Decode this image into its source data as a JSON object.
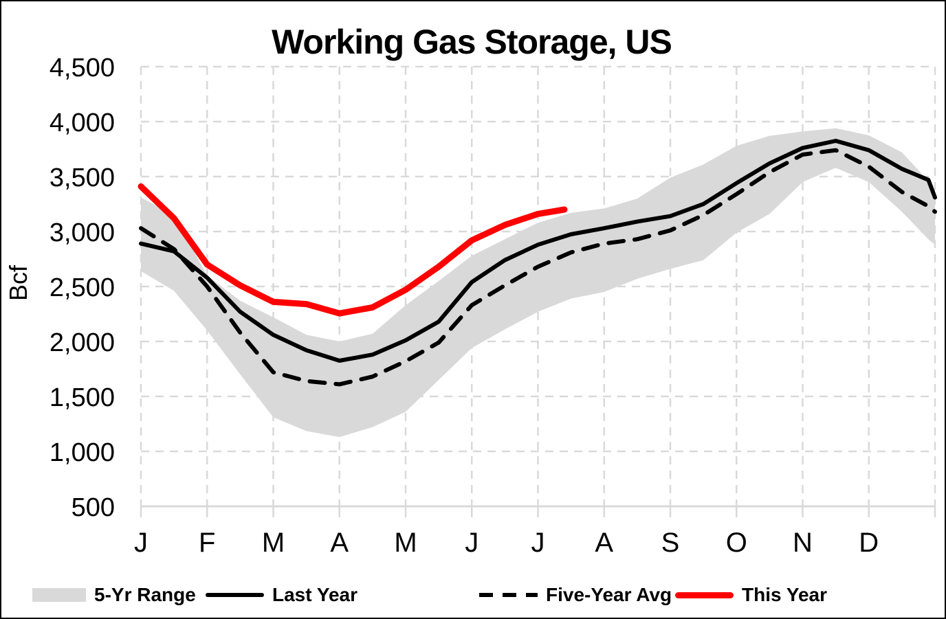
{
  "title": "Working Gas Storage, US",
  "legend": [
    {
      "label": "5-Yr Range",
      "swatch": "gray-band",
      "color": "#d9d9d9"
    },
    {
      "label": "Last Year",
      "swatch": "solid-black-line",
      "color": "#000000"
    },
    {
      "label": "Five-Year Avg",
      "swatch": "dashed-black-line",
      "color": "#000000"
    },
    {
      "label": "This Year",
      "swatch": "solid-red-line",
      "color": "#ff0000"
    }
  ],
  "chart_data": {
    "type": "line",
    "title": "Working Gas Storage, US",
    "xlabel": "",
    "ylabel": "Bcf",
    "ylim": [
      500,
      4500
    ],
    "y_tick_step": 500,
    "y_ticks": [
      500,
      1000,
      1500,
      2000,
      2500,
      3000,
      3500,
      4000,
      4500
    ],
    "x_tick_labels": [
      "J",
      "F",
      "M",
      "A",
      "M",
      "J",
      "J",
      "A",
      "S",
      "O",
      "N",
      "D"
    ],
    "x_scale_note": "x is months since Jan 1 (0 = Jan 1, 11.5 = Dec 15, 12 = year end); This Year ends ~mid-July (x = 6.4)",
    "grid": true,
    "legend_position": "bottom",
    "band": {
      "name": "5-Yr Range",
      "color": "#d9d9d9",
      "x": [
        0,
        0.5,
        1,
        1.5,
        2,
        2.5,
        3,
        3.5,
        4,
        4.5,
        5,
        5.5,
        6,
        6.5,
        7,
        7.5,
        8,
        8.5,
        9,
        9.5,
        10,
        10.5,
        11,
        11.5,
        11.9,
        12
      ],
      "upper": [
        3310,
        3150,
        2600,
        2370,
        2220,
        2060,
        2000,
        2070,
        2330,
        2550,
        2780,
        2930,
        3080,
        3170,
        3210,
        3300,
        3490,
        3610,
        3780,
        3870,
        3910,
        3940,
        3875,
        3720,
        3460,
        3340
      ],
      "lower": [
        2640,
        2460,
        2100,
        1700,
        1310,
        1185,
        1130,
        1220,
        1360,
        1650,
        1940,
        2110,
        2270,
        2390,
        2450,
        2570,
        2660,
        2740,
        2990,
        3160,
        3450,
        3580,
        3450,
        3180,
        2930,
        2880
      ]
    },
    "series": [
      {
        "name": "Last Year",
        "color": "#000000",
        "style": "solid",
        "stroke_width": 6,
        "x": [
          0,
          0.5,
          1,
          1.5,
          2,
          2.5,
          3,
          3.5,
          4,
          4.5,
          5,
          5.5,
          6,
          6.5,
          7,
          7.5,
          8,
          8.5,
          9,
          9.5,
          10,
          10.5,
          11,
          11.5,
          11.9,
          12
        ],
        "values": [
          2890,
          2820,
          2580,
          2270,
          2060,
          1920,
          1825,
          1880,
          2010,
          2180,
          2540,
          2740,
          2880,
          2975,
          3030,
          3090,
          3140,
          3250,
          3440,
          3620,
          3760,
          3825,
          3740,
          3570,
          3470,
          3310
        ]
      },
      {
        "name": "Five-Year Avg",
        "color": "#000000",
        "style": "dashed",
        "stroke_width": 6,
        "x": [
          0,
          0.5,
          1,
          1.5,
          2,
          2.5,
          3,
          3.5,
          4,
          4.5,
          5,
          5.5,
          6,
          6.5,
          7,
          7.5,
          8,
          8.5,
          9,
          9.5,
          10,
          10.5,
          11,
          11.5,
          11.9,
          12
        ],
        "values": [
          3030,
          2840,
          2500,
          2080,
          1720,
          1640,
          1610,
          1680,
          1820,
          1990,
          2330,
          2510,
          2680,
          2810,
          2890,
          2930,
          3010,
          3150,
          3340,
          3540,
          3700,
          3740,
          3590,
          3360,
          3230,
          3180
        ]
      },
      {
        "name": "This Year",
        "color": "#ff0000",
        "style": "solid",
        "stroke_width": 9,
        "x": [
          0,
          0.5,
          1,
          1.5,
          2,
          2.5,
          3,
          3.5,
          4,
          4.5,
          5,
          5.5,
          6,
          6.4
        ],
        "values": [
          3410,
          3120,
          2700,
          2510,
          2360,
          2340,
          2255,
          2310,
          2470,
          2680,
          2920,
          3060,
          3160,
          3200
        ]
      }
    ]
  }
}
